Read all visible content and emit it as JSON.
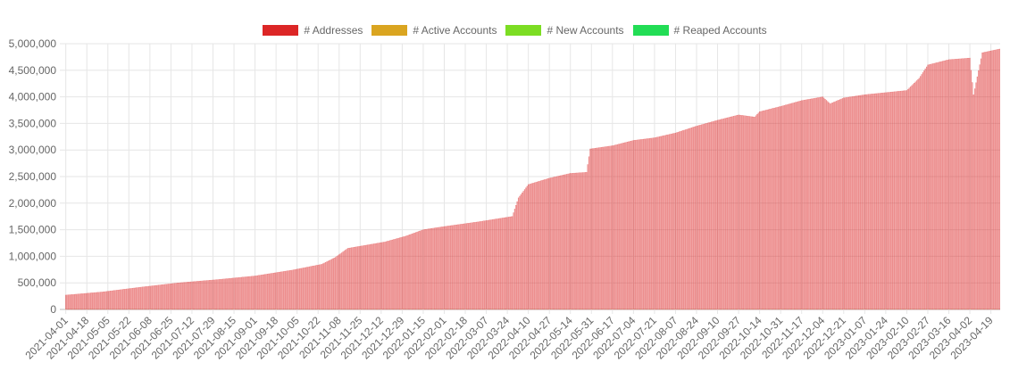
{
  "chart_data": {
    "type": "bar",
    "title": "",
    "xlabel": "",
    "ylabel": "",
    "ylim": [
      0,
      5000000
    ],
    "grid": true,
    "legend_position": "top",
    "y_ticks": [
      "0",
      "500,000",
      "1,000,000",
      "1,500,000",
      "2,000,000",
      "2,500,000",
      "3,000,000",
      "3,500,000",
      "4,000,000",
      "4,500,000",
      "5,000,000"
    ],
    "x_ticks": [
      "2021-04-01",
      "2021-04-18",
      "2021-05-05",
      "2021-05-22",
      "2021-06-08",
      "2021-06-25",
      "2021-07-12",
      "2021-07-29",
      "2021-08-15",
      "2021-09-01",
      "2021-09-18",
      "2021-10-05",
      "2021-10-22",
      "2021-11-08",
      "2021-11-25",
      "2021-12-12",
      "2021-12-29",
      "2022-01-15",
      "2022-02-01",
      "2022-02-18",
      "2022-03-07",
      "2022-03-24",
      "2022-04-10",
      "2022-04-27",
      "2022-05-14",
      "2022-05-31",
      "2022-06-17",
      "2022-07-04",
      "2022-07-21",
      "2022-08-07",
      "2022-08-24",
      "2022-09-10",
      "2022-09-27",
      "2022-10-14",
      "2022-10-31",
      "2022-11-17",
      "2022-12-04",
      "2022-12-21",
      "2023-01-07",
      "2023-01-24",
      "2023-02-10",
      "2023-02-27",
      "2023-03-16",
      "2023-04-02",
      "2023-04-19"
    ],
    "series": [
      {
        "name": "# Addresses",
        "color": "#dc2626",
        "points": [
          [
            "2021-04-01",
            270000
          ],
          [
            "2021-05-01",
            330000
          ],
          [
            "2021-06-01",
            420000
          ],
          [
            "2021-07-01",
            500000
          ],
          [
            "2021-08-01",
            560000
          ],
          [
            "2021-09-01",
            630000
          ],
          [
            "2021-10-01",
            740000
          ],
          [
            "2021-10-25",
            850000
          ],
          [
            "2021-11-05",
            980000
          ],
          [
            "2021-11-15",
            1150000
          ],
          [
            "2021-12-15",
            1270000
          ],
          [
            "2022-01-01",
            1380000
          ],
          [
            "2022-01-15",
            1500000
          ],
          [
            "2022-02-01",
            1560000
          ],
          [
            "2022-03-01",
            1650000
          ],
          [
            "2022-03-28",
            1750000
          ],
          [
            "2022-04-02",
            2100000
          ],
          [
            "2022-04-10",
            2350000
          ],
          [
            "2022-04-27",
            2470000
          ],
          [
            "2022-05-14",
            2560000
          ],
          [
            "2022-05-27",
            2580000
          ],
          [
            "2022-05-30",
            3020000
          ],
          [
            "2022-06-17",
            3080000
          ],
          [
            "2022-07-04",
            3180000
          ],
          [
            "2022-07-21",
            3230000
          ],
          [
            "2022-08-07",
            3320000
          ],
          [
            "2022-08-24",
            3450000
          ],
          [
            "2022-09-10",
            3560000
          ],
          [
            "2022-09-27",
            3660000
          ],
          [
            "2022-10-10",
            3620000
          ],
          [
            "2022-10-14",
            3720000
          ],
          [
            "2022-10-31",
            3820000
          ],
          [
            "2022-11-17",
            3930000
          ],
          [
            "2022-12-04",
            4000000
          ],
          [
            "2022-12-10",
            3870000
          ],
          [
            "2022-12-21",
            3980000
          ],
          [
            "2023-01-07",
            4040000
          ],
          [
            "2023-01-24",
            4080000
          ],
          [
            "2023-02-10",
            4120000
          ],
          [
            "2023-02-20",
            4350000
          ],
          [
            "2023-02-27",
            4600000
          ],
          [
            "2023-03-16",
            4700000
          ],
          [
            "2023-04-02",
            4730000
          ],
          [
            "2023-04-05",
            4040000
          ],
          [
            "2023-04-12",
            4830000
          ],
          [
            "2023-04-26",
            4900000
          ]
        ]
      },
      {
        "name": "# Active Accounts",
        "color": "#daa520",
        "points": [
          [
            "2021-04-01",
            3000
          ],
          [
            "2023-04-26",
            4000
          ]
        ]
      },
      {
        "name": "# New Accounts",
        "color": "#7cdd23",
        "points": [
          [
            "2021-04-01",
            1500
          ],
          [
            "2023-04-26",
            2000
          ]
        ]
      },
      {
        "name": "# Reaped Accounts",
        "color": "#22dd55",
        "points": [
          [
            "2021-04-01",
            0
          ],
          [
            "2023-04-26",
            0
          ]
        ]
      }
    ]
  }
}
